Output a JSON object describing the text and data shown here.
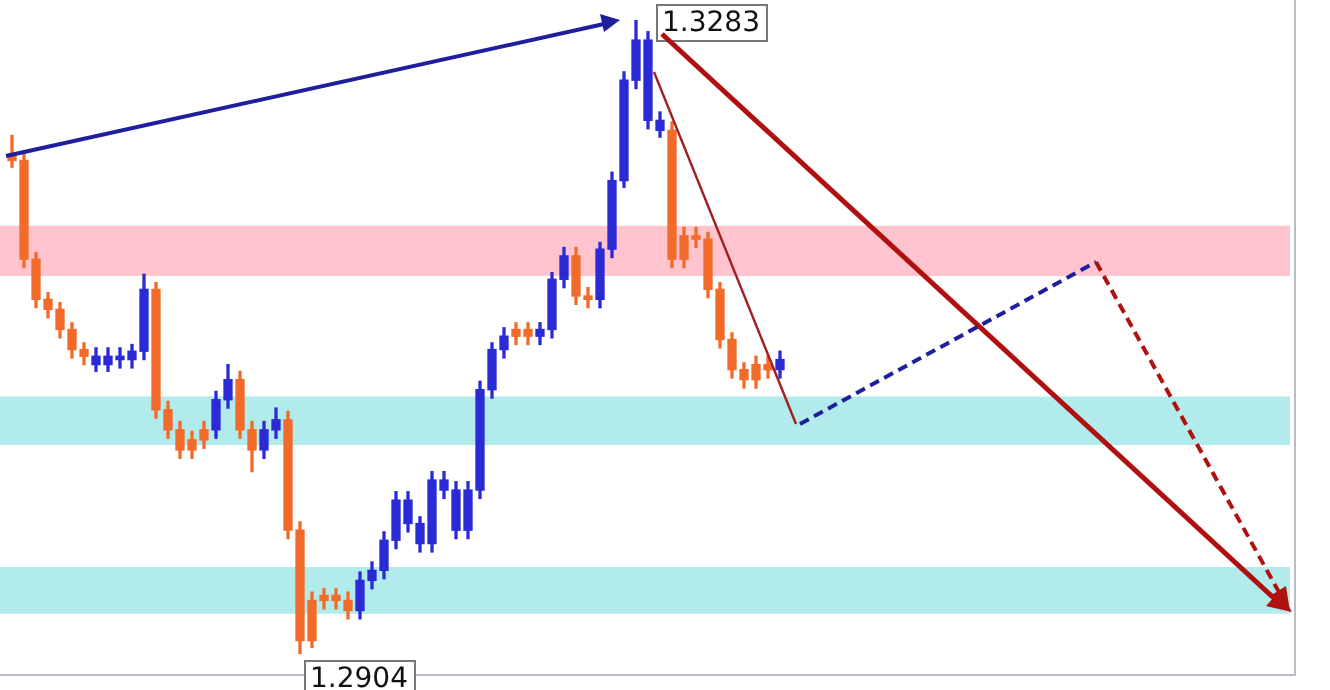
{
  "chart_data": {
    "type": "candlestick",
    "categories": [
      null,
      null,
      null,
      null,
      null,
      null,
      null,
      null,
      null,
      null,
      null,
      null,
      null,
      null,
      null,
      null,
      null,
      null,
      null,
      null,
      null,
      null,
      null,
      null,
      null,
      null,
      null,
      null,
      null,
      null,
      null,
      null,
      null,
      null,
      null,
      null,
      null,
      null,
      null,
      null,
      null,
      null,
      null,
      null,
      null,
      null,
      null,
      null,
      null,
      null,
      null,
      null,
      null,
      null,
      null,
      null,
      null,
      null,
      null,
      null,
      null,
      null,
      null,
      null,
      null,
      null,
      null,
      null,
      null,
      null,
      null,
      null,
      null,
      null,
      null,
      null,
      null,
      null,
      null,
      null,
      null,
      null,
      null,
      null,
      null,
      null,
      null,
      null,
      null,
      null,
      null,
      null,
      null,
      null,
      null,
      null,
      null,
      null,
      null,
      null,
      null,
      null,
      null,
      null,
      null,
      null,
      null
    ],
    "ohlc": [
      [
        1.3202,
        1.3214,
        1.3195,
        1.3199
      ],
      [
        1.3199,
        1.3204,
        1.3135,
        1.314
      ],
      [
        1.314,
        1.3144,
        1.3111,
        1.3116
      ],
      [
        1.3116,
        1.312,
        1.3105,
        1.311
      ],
      [
        1.311,
        1.3114,
        1.3093,
        1.3098
      ],
      [
        1.3098,
        1.3102,
        1.3081,
        1.3086
      ],
      [
        1.3086,
        1.309,
        1.3077,
        1.3082
      ],
      [
        1.3077,
        1.3087,
        1.3073,
        1.3082
      ],
      [
        1.3077,
        1.3087,
        1.3073,
        1.3082
      ],
      [
        1.308,
        1.3087,
        1.3075,
        1.3082
      ],
      [
        1.308,
        1.3089,
        1.3075,
        1.3085
      ],
      [
        1.3085,
        1.3131,
        1.308,
        1.3122
      ],
      [
        1.3122,
        1.3126,
        1.3045,
        1.305
      ],
      [
        1.305,
        1.3055,
        1.3033,
        1.3038
      ],
      [
        1.3038,
        1.3043,
        1.3021,
        1.3026
      ],
      [
        1.3032,
        1.3037,
        1.3021,
        1.3026
      ],
      [
        1.3038,
        1.3043,
        1.3027,
        1.3032
      ],
      [
        1.3038,
        1.3061,
        1.3033,
        1.3056
      ],
      [
        1.3056,
        1.3077,
        1.3051,
        1.3068
      ],
      [
        1.3068,
        1.3073,
        1.3033,
        1.3038
      ],
      [
        1.3038,
        1.3043,
        1.3013,
        1.3026
      ],
      [
        1.3026,
        1.3043,
        1.3021,
        1.3038
      ],
      [
        1.3038,
        1.3051,
        1.3033,
        1.3044
      ],
      [
        1.3044,
        1.3049,
        1.2973,
        1.2978
      ],
      [
        1.2978,
        1.2983,
        1.2904,
        1.2912
      ],
      [
        1.2936,
        1.2941,
        1.2908,
        1.2912
      ],
      [
        1.2939,
        1.2943,
        1.2931,
        1.2936
      ],
      [
        1.2939,
        1.2943,
        1.2931,
        1.2936
      ],
      [
        1.2936,
        1.2941,
        1.2925,
        1.293
      ],
      [
        1.293,
        1.2953,
        1.2925,
        1.2948
      ],
      [
        1.2948,
        1.2959,
        1.2943,
        1.2954
      ],
      [
        1.2954,
        1.2977,
        1.2949,
        1.2972
      ],
      [
        1.2972,
        1.3001,
        1.2967,
        1.2996
      ],
      [
        1.2982,
        1.3001,
        1.2977,
        1.2996
      ],
      [
        1.297,
        1.2986,
        1.2965,
        1.2982
      ],
      [
        1.297,
        1.3013,
        1.2965,
        1.3008
      ],
      [
        1.3002,
        1.3013,
        1.2997,
        1.3008
      ],
      [
        1.2978,
        1.3007,
        1.2973,
        1.3002
      ],
      [
        1.2978,
        1.3007,
        1.2973,
        1.3002
      ],
      [
        1.3002,
        1.3067,
        1.2997,
        1.3062
      ],
      [
        1.3062,
        1.309,
        1.3057,
        1.3086
      ],
      [
        1.3086,
        1.3099,
        1.3081,
        1.3094
      ],
      [
        1.3098,
        1.3102,
        1.3089,
        1.3094
      ],
      [
        1.3098,
        1.3102,
        1.3089,
        1.3094
      ],
      [
        1.3094,
        1.3102,
        1.3089,
        1.3098
      ],
      [
        1.3098,
        1.3132,
        1.3093,
        1.3128
      ],
      [
        1.3128,
        1.3147,
        1.3123,
        1.3142
      ],
      [
        1.3142,
        1.3147,
        1.3113,
        1.3118
      ],
      [
        1.3118,
        1.3123,
        1.3111,
        1.3116
      ],
      [
        1.3116,
        1.315,
        1.3111,
        1.3146
      ],
      [
        1.3146,
        1.3192,
        1.3141,
        1.3187
      ],
      [
        1.3187,
        1.3252,
        1.3183,
        1.3247
      ],
      [
        1.3247,
        1.3283,
        1.3242,
        1.3271
      ],
      [
        1.3223,
        1.3276,
        1.3218,
        1.3271
      ],
      [
        1.3217,
        1.3228,
        1.3213,
        1.3223
      ],
      [
        1.3217,
        1.3222,
        1.3135,
        1.314
      ],
      [
        1.3154,
        1.3159,
        1.3135,
        1.314
      ],
      [
        1.3154,
        1.3159,
        1.3147,
        1.3152
      ],
      [
        1.3152,
        1.3156,
        1.3117,
        1.3122
      ],
      [
        1.3122,
        1.3126,
        1.3087,
        1.3092
      ],
      [
        1.3092,
        1.3096,
        1.3069,
        1.3074
      ],
      [
        1.3074,
        1.3078,
        1.3063,
        1.3068
      ],
      [
        1.3077,
        1.3082,
        1.3063,
        1.3068
      ],
      [
        1.3077,
        1.3082,
        1.3069,
        1.3074
      ],
      [
        1.3074,
        1.3085,
        1.3069,
        1.308
      ],
      null,
      null,
      null,
      null,
      null,
      null,
      null,
      null,
      null,
      null,
      null,
      null,
      null,
      null,
      null,
      null,
      null,
      null,
      null,
      null,
      null,
      null,
      null,
      null,
      null,
      null,
      null,
      null,
      null,
      null,
      null,
      null,
      null,
      null,
      null,
      null,
      null,
      null,
      null,
      null,
      null,
      null
    ],
    "colors": [
      "#f26b2a",
      "#f26b2a",
      "#f26b2a",
      "#f26b2a",
      "#f26b2a",
      "#f26b2a",
      "#f26b2a",
      "#2b2bd6",
      "#2b2bd6",
      "#2b2bd6",
      "#2b2bd6",
      "#2b2bd6",
      "#f26b2a",
      "#f26b2a",
      "#f26b2a",
      "#f26b2a",
      "#f26b2a",
      "#2b2bd6",
      "#2b2bd6",
      "#f26b2a",
      "#f26b2a",
      "#2b2bd6",
      "#2b2bd6",
      "#f26b2a",
      "#f26b2a",
      "#f26b2a",
      "#f26b2a",
      "#f26b2a",
      "#f26b2a",
      "#2b2bd6",
      "#2b2bd6",
      "#2b2bd6",
      "#2b2bd6",
      "#2b2bd6",
      "#2b2bd6",
      "#2b2bd6",
      "#2b2bd6",
      "#2b2bd6",
      "#2b2bd6",
      "#2b2bd6",
      "#2b2bd6",
      "#2b2bd6",
      "#f26b2a",
      "#f26b2a",
      "#2b2bd6",
      "#2b2bd6",
      "#2b2bd6",
      "#f26b2a",
      "#f26b2a",
      "#2b2bd6",
      "#2b2bd6",
      "#2b2bd6",
      "#2b2bd6",
      "#2b2bd6",
      "#2b2bd6",
      "#f26b2a",
      "#f26b2a",
      "#f26b2a",
      "#f26b2a",
      "#f26b2a",
      "#f26b2a",
      "#f26b2a",
      "#f26b2a",
      "#f26b2a",
      "#2b2bd6",
      null,
      null,
      null,
      null,
      null,
      null,
      null,
      null,
      null,
      null,
      null,
      null,
      null,
      null,
      null,
      null,
      null,
      null,
      null,
      null,
      null,
      null,
      null,
      null,
      null,
      null,
      null,
      null,
      null,
      null,
      null,
      null,
      null,
      null,
      null,
      null,
      null,
      null,
      null,
      null,
      null,
      null
    ],
    "bands": [
      {
        "axis": "y",
        "from": 1.313,
        "to": 1.316,
        "color": "#ffc4ce"
      },
      {
        "axis": "y",
        "from": 1.3029,
        "to": 1.3058,
        "color": "#b2ebeb"
      },
      {
        "axis": "y",
        "from": 1.2928,
        "to": 1.2956,
        "color": "#b2ebeb"
      }
    ],
    "annotations": [
      "1.3283",
      "1.2904"
    ],
    "legend": false
  }
}
